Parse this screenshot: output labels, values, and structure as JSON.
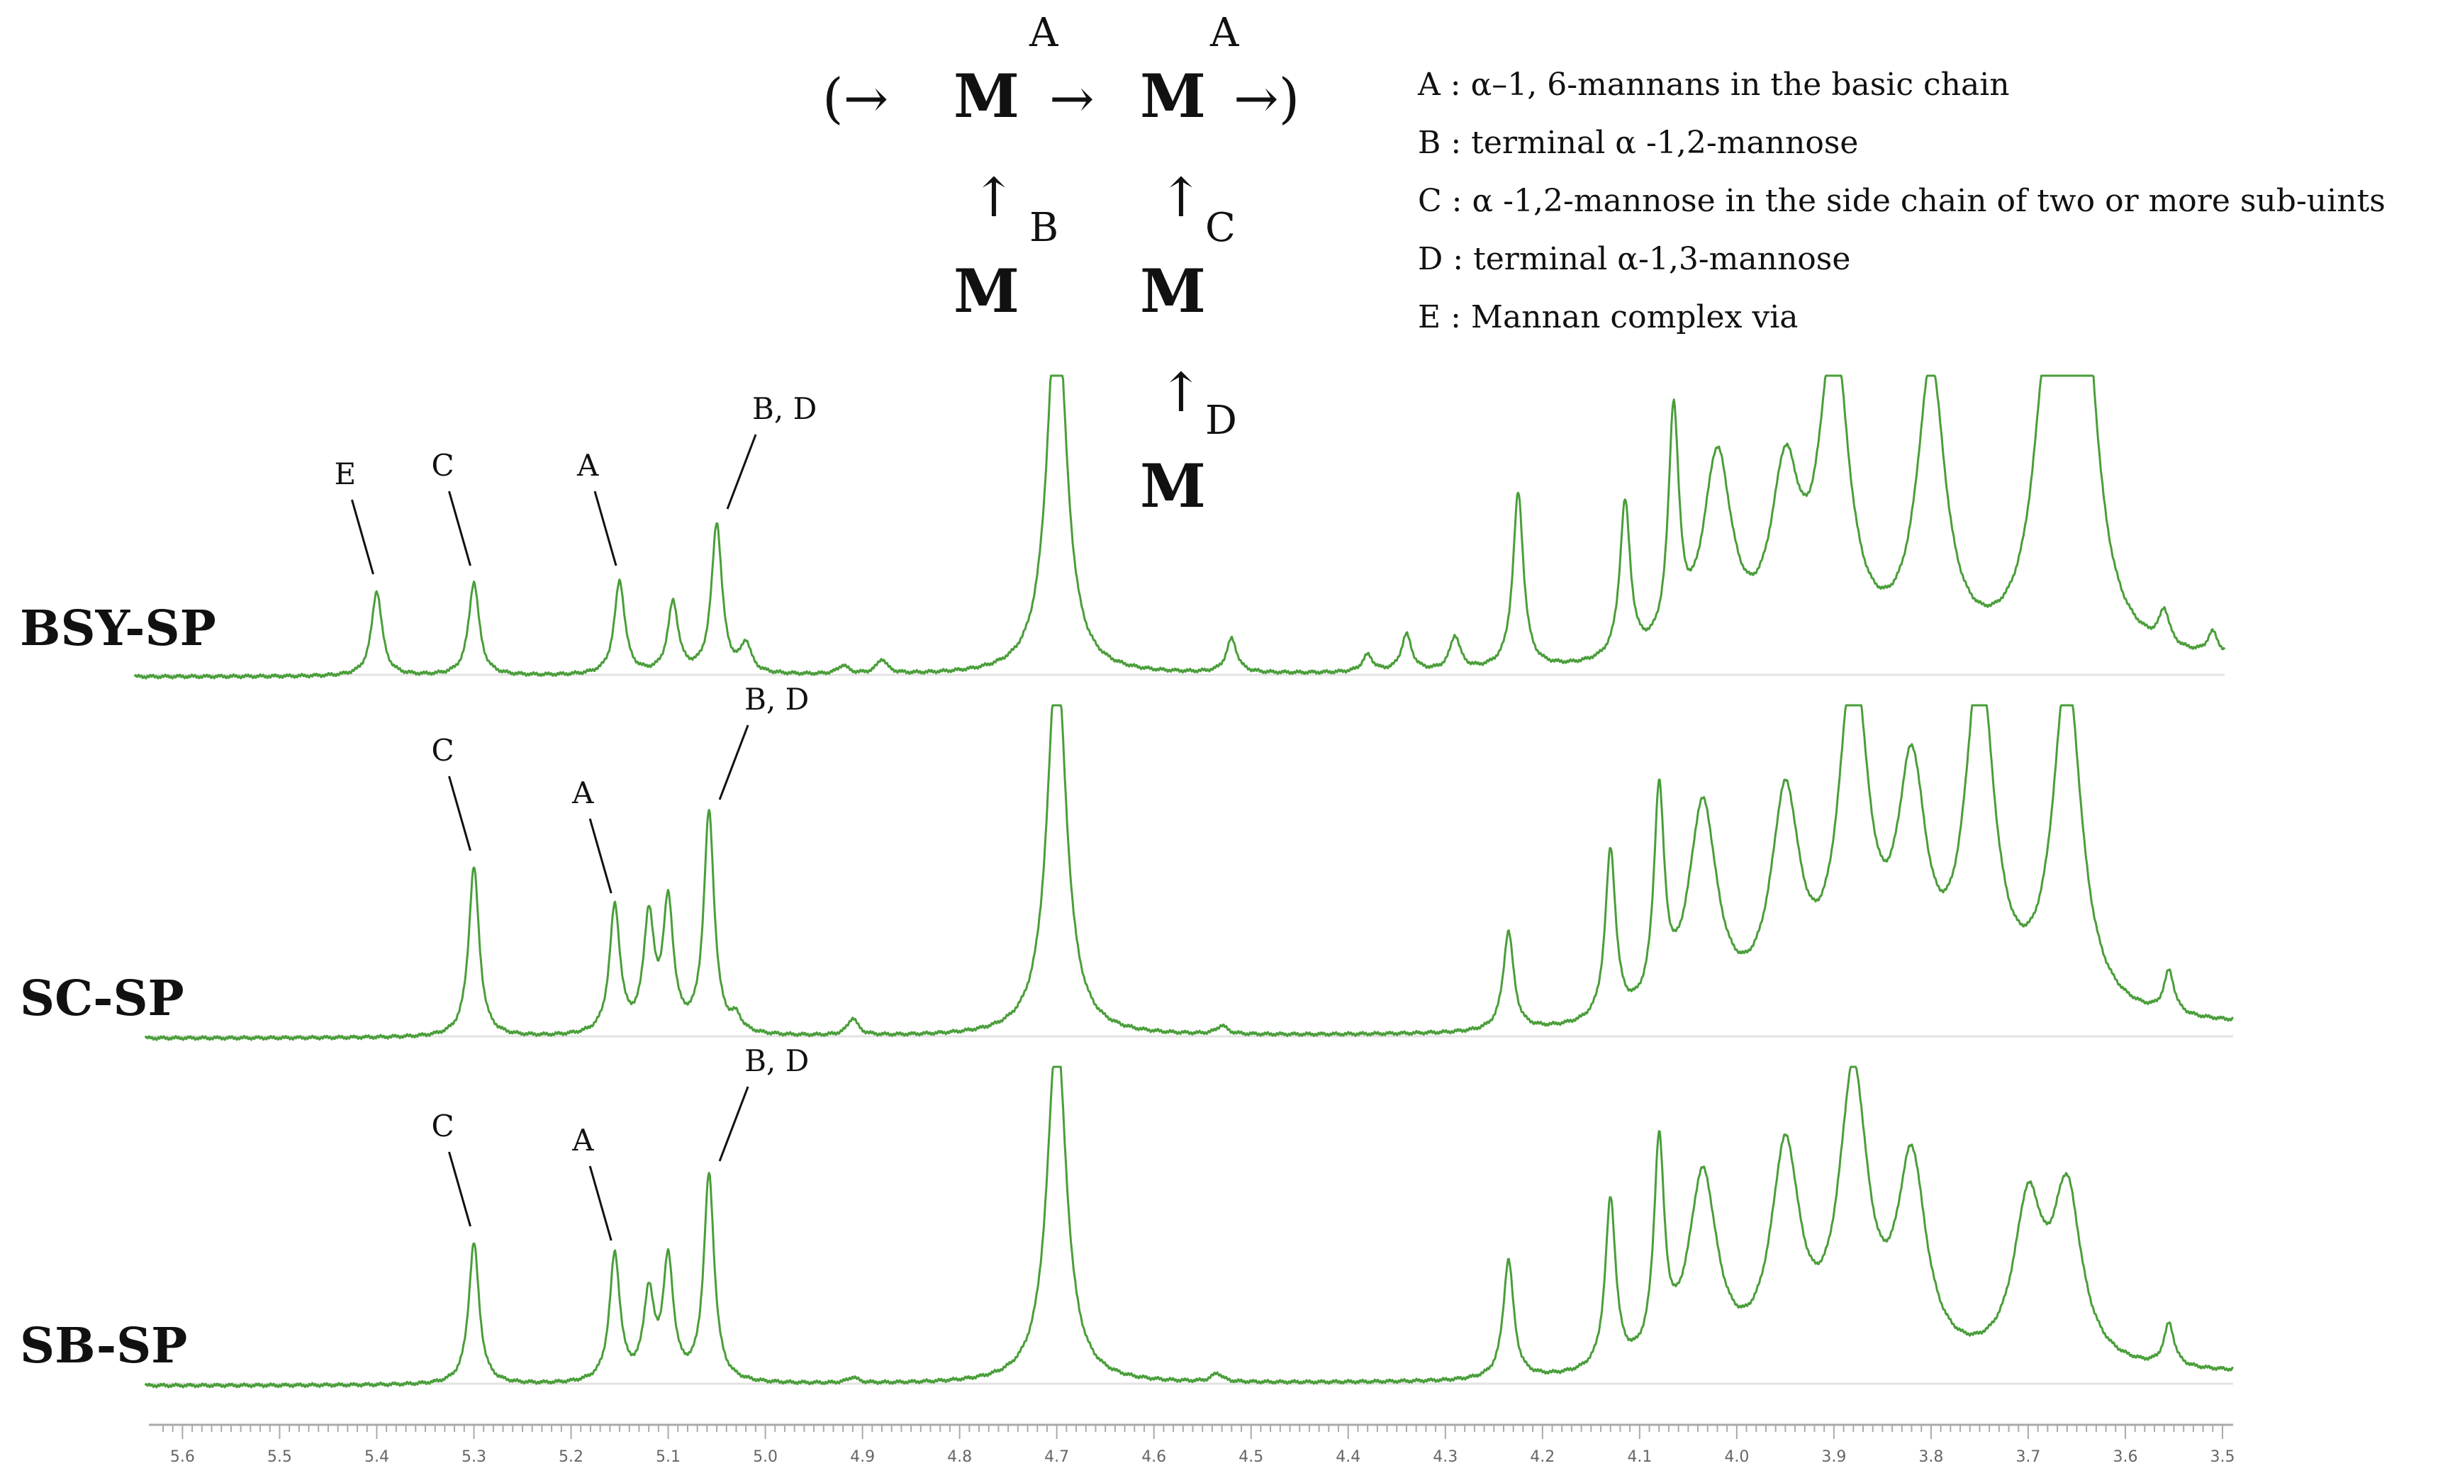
{
  "chart_data": {
    "type": "line",
    "xlabel": "",
    "ylabel": "",
    "xlim": [
      5.62,
      3.5
    ],
    "x_direction": "reversed",
    "x_ticks": [
      "5.6",
      "5.5",
      "5.4",
      "5.3",
      "5.2",
      "5.1",
      "5.0",
      "4.9",
      "4.8",
      "4.7",
      "4.6",
      "4.5",
      "4.4",
      "4.3",
      "4.2",
      "4.1",
      "4.0",
      "3.9",
      "3.8",
      "3.7",
      "3.6",
      "3.5"
    ],
    "grid": false,
    "legend_position": "top-right",
    "line_color": "#4a9e3a",
    "structure": {
      "open": "(→",
      "arrow": "→",
      "close": "→)",
      "residue": "M",
      "up_arrow": "↑",
      "letters": {
        "a": "A",
        "b": "B",
        "c": "C",
        "d": "D"
      }
    },
    "legend": [
      {
        "key": "A",
        "text": "A : α–1, 6-mannans in the basic chain"
      },
      {
        "key": "B",
        "text": "B : terminal α -1,2-mannose"
      },
      {
        "key": "C",
        "text": "C : α -1,2-mannose in the side chain of two or more sub-uints"
      },
      {
        "key": "D",
        "text": "D : terminal α-1,3-mannose"
      },
      {
        "key": "E",
        "text": "E : Mannan complex via"
      }
    ],
    "series": [
      {
        "name": "BSY-SP",
        "peaks": [
          {
            "x": 5.4,
            "h": 0.3
          },
          {
            "x": 5.3,
            "h": 0.33
          },
          {
            "x": 5.15,
            "h": 0.33
          },
          {
            "x": 5.095,
            "h": 0.25
          },
          {
            "x": 5.05,
            "h": 0.53
          },
          {
            "x": 5.02,
            "h": 0.1
          },
          {
            "x": 4.92,
            "h": 0.03
          },
          {
            "x": 4.88,
            "h": 0.05
          },
          {
            "x": 4.7,
            "h": 1.35
          },
          {
            "x": 4.52,
            "h": 0.12
          },
          {
            "x": 4.38,
            "h": 0.06
          },
          {
            "x": 4.34,
            "h": 0.13
          },
          {
            "x": 4.29,
            "h": 0.12
          },
          {
            "x": 4.225,
            "h": 0.62
          },
          {
            "x": 4.115,
            "h": 0.55
          },
          {
            "x": 4.065,
            "h": 0.82
          },
          {
            "x": 4.02,
            "h": 0.7
          },
          {
            "x": 3.95,
            "h": 0.6
          },
          {
            "x": 3.9,
            "h": 1.1
          },
          {
            "x": 3.8,
            "h": 1.0
          },
          {
            "x": 3.68,
            "h": 0.9
          },
          {
            "x": 3.645,
            "h": 1.3
          },
          {
            "x": 3.56,
            "h": 0.12
          },
          {
            "x": 3.51,
            "h": 0.08
          }
        ],
        "annotations": [
          {
            "label": "E",
            "x": 5.4
          },
          {
            "label": "C",
            "x": 5.3
          },
          {
            "label": "A",
            "x": 5.15
          },
          {
            "label": "B, D",
            "x": 5.05
          }
        ]
      },
      {
        "name": "SC-SP",
        "peaks": [
          {
            "x": 5.3,
            "h": 0.6
          },
          {
            "x": 5.155,
            "h": 0.45
          },
          {
            "x": 5.12,
            "h": 0.4
          },
          {
            "x": 5.1,
            "h": 0.45
          },
          {
            "x": 5.058,
            "h": 0.78
          },
          {
            "x": 5.03,
            "h": 0.05
          },
          {
            "x": 4.91,
            "h": 0.06
          },
          {
            "x": 4.7,
            "h": 1.35
          },
          {
            "x": 4.53,
            "h": 0.03
          },
          {
            "x": 4.235,
            "h": 0.35
          },
          {
            "x": 4.13,
            "h": 0.6
          },
          {
            "x": 4.08,
            "h": 0.75
          },
          {
            "x": 4.035,
            "h": 0.75
          },
          {
            "x": 3.95,
            "h": 0.75
          },
          {
            "x": 3.88,
            "h": 1.2
          },
          {
            "x": 3.82,
            "h": 0.8
          },
          {
            "x": 3.75,
            "h": 1.2
          },
          {
            "x": 3.66,
            "h": 1.2
          },
          {
            "x": 3.555,
            "h": 0.15
          }
        ],
        "annotations": [
          {
            "label": "C",
            "x": 5.3
          },
          {
            "label": "A",
            "x": 5.155
          },
          {
            "label": "B, D",
            "x": 5.058
          }
        ]
      },
      {
        "name": "SB-SP",
        "peaks": [
          {
            "x": 5.3,
            "h": 0.5
          },
          {
            "x": 5.155,
            "h": 0.45
          },
          {
            "x": 5.12,
            "h": 0.3
          },
          {
            "x": 5.1,
            "h": 0.42
          },
          {
            "x": 5.058,
            "h": 0.73
          },
          {
            "x": 4.91,
            "h": 0.02
          },
          {
            "x": 4.7,
            "h": 1.25
          },
          {
            "x": 4.535,
            "h": 0.03
          },
          {
            "x": 4.235,
            "h": 0.42
          },
          {
            "x": 4.13,
            "h": 0.6
          },
          {
            "x": 4.08,
            "h": 0.75
          },
          {
            "x": 4.035,
            "h": 0.68
          },
          {
            "x": 3.95,
            "h": 0.75
          },
          {
            "x": 3.88,
            "h": 1.0
          },
          {
            "x": 3.82,
            "h": 0.7
          },
          {
            "x": 3.7,
            "h": 0.55
          },
          {
            "x": 3.66,
            "h": 0.6
          },
          {
            "x": 3.555,
            "h": 0.15
          }
        ],
        "annotations": [
          {
            "label": "C",
            "x": 5.3
          },
          {
            "label": "A",
            "x": 5.155
          },
          {
            "label": "B, D",
            "x": 5.058
          }
        ]
      }
    ]
  }
}
